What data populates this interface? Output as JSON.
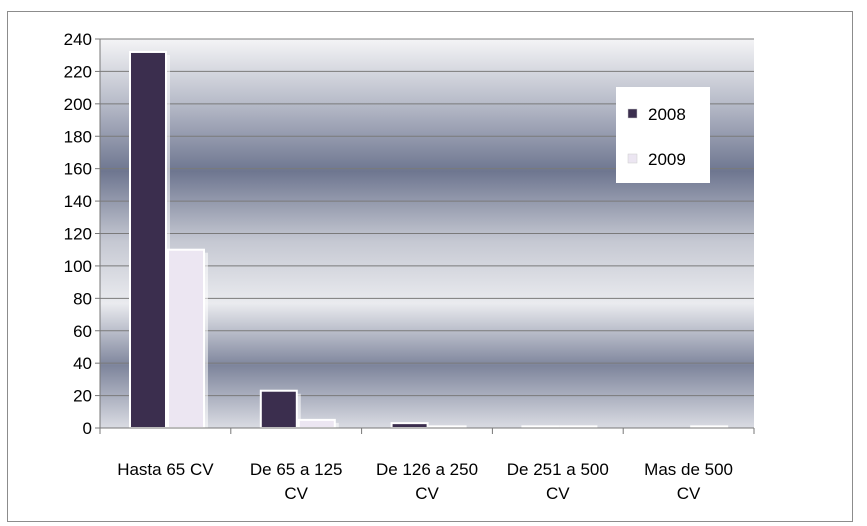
{
  "chart_data": {
    "type": "bar",
    "categories": [
      [
        "Hasta 65 CV"
      ],
      [
        "De 65 a 125",
        "CV"
      ],
      [
        "De 126 a 250",
        "CV"
      ],
      [
        "De 251 a 500",
        "CV"
      ],
      [
        "Mas de 500",
        "CV"
      ]
    ],
    "series": [
      {
        "name": "2008",
        "values": [
          232,
          23,
          3,
          1,
          0
        ],
        "color": "#3b2e4e"
      },
      {
        "name": "2009",
        "values": [
          110,
          5,
          1,
          1,
          1
        ],
        "color": "#ece6f2"
      }
    ],
    "y_ticks": [
      0,
      20,
      40,
      60,
      80,
      100,
      120,
      140,
      160,
      180,
      200,
      220,
      240
    ],
    "ylim": [
      0,
      240
    ],
    "grid": true,
    "legend_position": "right"
  }
}
